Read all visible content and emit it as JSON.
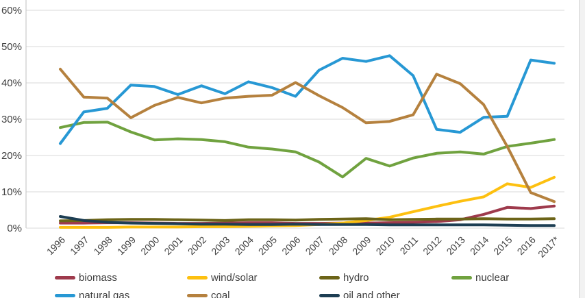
{
  "chart_data": {
    "type": "line",
    "title": "",
    "xlabel": "",
    "ylabel": "",
    "ylim": [
      0,
      60
    ],
    "grid": true,
    "legend_position": "bottom",
    "y_ticks": [
      "0%",
      "10%",
      "20%",
      "30%",
      "40%",
      "50%",
      "60%"
    ],
    "x_labels": [
      "1996",
      "1997",
      "1998",
      "1999",
      "2000",
      "2001",
      "2002",
      "2003",
      "2004",
      "2005",
      "2006",
      "2007",
      "2008",
      "2009",
      "2010",
      "2011",
      "2012",
      "2013",
      "2014",
      "2015",
      "2016",
      "2017*"
    ],
    "series": [
      {
        "name": "biomass",
        "color": "#9e3a4c",
        "values": [
          1.4,
          1.4,
          1.5,
          1.5,
          1.4,
          1.3,
          1.3,
          1.4,
          1.5,
          1.5,
          1.3,
          1.3,
          1.4,
          1.4,
          1.5,
          1.6,
          1.8,
          2.3,
          3.8,
          5.7,
          5.4,
          6.1
        ]
      },
      {
        "name": "wind/solar",
        "color": "#fdc010",
        "values": [
          0.2,
          0.2,
          0.2,
          0.3,
          0.3,
          0.3,
          0.4,
          0.4,
          0.5,
          0.6,
          0.7,
          1.0,
          1.4,
          2.1,
          3.0,
          4.5,
          6.0,
          7.4,
          8.6,
          12.2,
          11.2,
          14.0
        ]
      },
      {
        "name": "hydro",
        "color": "#6c6418",
        "values": [
          2.0,
          2.1,
          2.3,
          2.4,
          2.4,
          2.3,
          2.2,
          2.1,
          2.3,
          2.3,
          2.2,
          2.4,
          2.5,
          2.6,
          2.3,
          2.4,
          2.5,
          2.5,
          2.6,
          2.5,
          2.5,
          2.6
        ]
      },
      {
        "name": "nuclear",
        "color": "#70a23f",
        "values": [
          27.7,
          29.1,
          29.2,
          26.5,
          24.3,
          24.6,
          24.4,
          23.8,
          22.3,
          21.8,
          21.0,
          18.2,
          14.1,
          19.2,
          17.1,
          19.3,
          20.6,
          21.0,
          20.4,
          22.5,
          23.4,
          24.4
        ]
      },
      {
        "name": "natural gas",
        "color": "#2798d4",
        "values": [
          23.3,
          32.0,
          33.0,
          39.4,
          39.0,
          36.8,
          39.2,
          37.0,
          40.3,
          38.7,
          36.3,
          43.5,
          46.8,
          45.9,
          47.5,
          42.0,
          27.2,
          26.4,
          30.5,
          30.8,
          46.3,
          45.4
        ]
      },
      {
        "name": "coal",
        "color": "#b5813e",
        "values": [
          43.8,
          36.1,
          35.8,
          30.4,
          33.8,
          36.0,
          34.5,
          35.8,
          36.3,
          36.6,
          40.1,
          36.5,
          33.2,
          29.0,
          29.4,
          31.2,
          42.4,
          39.8,
          34.0,
          22.5,
          9.8,
          7.3
        ]
      },
      {
        "name": "oil and other",
        "color": "#1d3e53",
        "values": [
          3.2,
          2.1,
          1.6,
          1.4,
          1.3,
          1.2,
          1.1,
          1.1,
          1.0,
          1.0,
          1.1,
          1.0,
          1.0,
          1.0,
          0.9,
          0.9,
          0.9,
          0.9,
          0.9,
          0.8,
          0.7,
          0.7
        ]
      }
    ],
    "legend_rows": [
      [
        "biomass",
        "wind/solar",
        "hydro",
        "nuclear"
      ],
      [
        "natural gas",
        "coal",
        "oil and other"
      ]
    ]
  },
  "colors": {
    "grid": "#d9d9d9",
    "axis": "#bfbfbf",
    "tick_text": "#404040",
    "background": "#ffffff"
  }
}
